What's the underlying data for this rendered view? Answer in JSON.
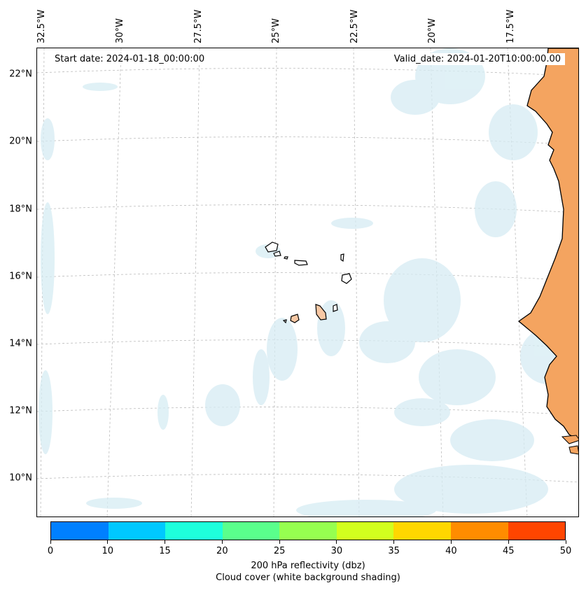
{
  "map": {
    "start_label": "Start date: 2024-01-18_00:00:00",
    "valid_label": "Valid_date: 2024-01-20T10:00:00.00",
    "lon_labels": [
      "32.5°W",
      "30°W",
      "27.5°W",
      "25°W",
      "22.5°W",
      "20°W",
      "17.5°W"
    ],
    "lat_labels": [
      "22°N",
      "20°N",
      "18°N",
      "16°N",
      "14°N",
      "12°N",
      "10°N"
    ],
    "land_color": "#f4a460",
    "cloud_color": "#d6ecf3",
    "coast_color": "#000000"
  },
  "colorbar": {
    "ticks": [
      "0",
      "10",
      "15",
      "20",
      "25",
      "30",
      "35",
      "40",
      "45",
      "50"
    ],
    "colors": [
      "#0080ff",
      "#00c8ff",
      "#1effdc",
      "#5aff8c",
      "#96ff50",
      "#d2ff1e",
      "#ffd700",
      "#ff8c00",
      "#ff4500"
    ],
    "label_line1": "200 hPa reflectivity (dbz)",
    "label_line2": "Cloud cover (white background shading)"
  }
}
